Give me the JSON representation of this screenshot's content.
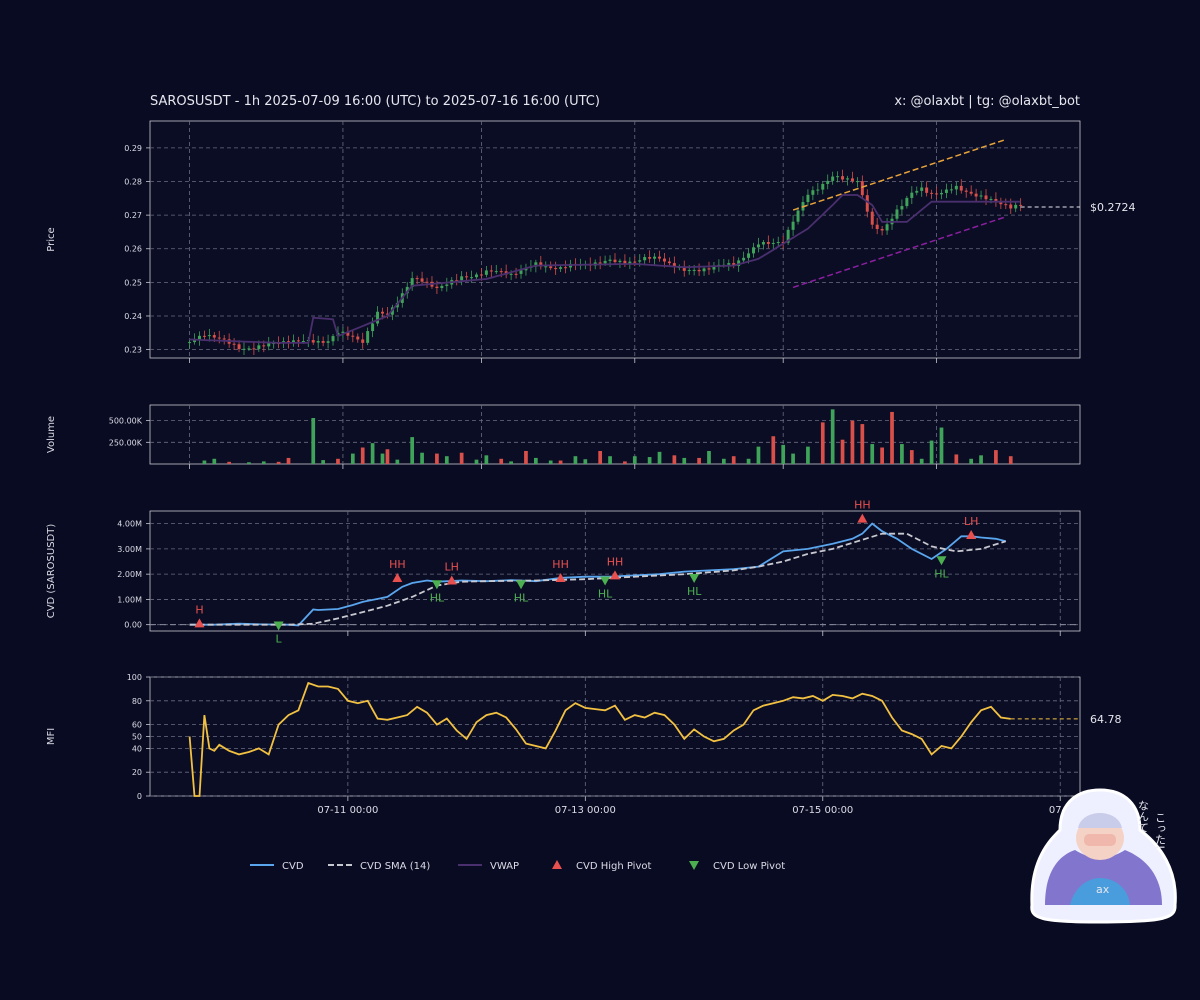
{
  "header": {
    "title": "SAROSUSDT - 1h 2025-07-09 16:00 (UTC) to 2025-07-16 16:00 (UTC)",
    "credit": "x: @olaxbt | tg: @olaxbt_bot"
  },
  "mascot": {
    "caption_line1": "こった!",
    "caption_line2": "なんて"
  },
  "chart_data": [
    {
      "id": "price",
      "type": "candlestick",
      "ylabel": "Price",
      "ylim": [
        0.2275,
        0.298
      ],
      "yticks": [
        "0.23",
        "0.24",
        "0.25",
        "0.26",
        "0.27",
        "0.28",
        "0.29"
      ],
      "ytick_values": [
        0.23,
        0.24,
        0.25,
        0.26,
        0.27,
        0.28,
        0.29
      ],
      "last_price_label": "$0.2724",
      "last_price": 0.2724,
      "colors": {
        "up": "#3fa45a",
        "down": "#d9504a",
        "vwap": "#4a2f6e",
        "resistance": "#e8a33a",
        "support": "#8b1fa0"
      },
      "resistance": {
        "x": [
          122,
          165
        ],
        "y": [
          0.2715,
          0.2925
        ]
      },
      "support": {
        "x": [
          122,
          165
        ],
        "y": [
          0.2485,
          0.2695
        ]
      },
      "candle_anchors": {
        "x": [
          0,
          3,
          6,
          10,
          15,
          20,
          25,
          28,
          30,
          35,
          38,
          40,
          45,
          50,
          55,
          60,
          65,
          70,
          75,
          80,
          85,
          90,
          95,
          100,
          105,
          110,
          115,
          120,
          125,
          130,
          135,
          138,
          140,
          143,
          146,
          148,
          150,
          152,
          155,
          158,
          160,
          163,
          166,
          168
        ],
        "close": [
          0.232,
          0.234,
          0.233,
          0.231,
          0.231,
          0.232,
          0.233,
          0.233,
          0.235,
          0.232,
          0.241,
          0.241,
          0.251,
          0.248,
          0.252,
          0.253,
          0.252,
          0.256,
          0.254,
          0.255,
          0.257,
          0.256,
          0.257,
          0.254,
          0.254,
          0.255,
          0.262,
          0.262,
          0.276,
          0.282,
          0.28,
          0.266,
          0.265,
          0.272,
          0.277,
          0.278,
          0.276,
          0.276,
          0.278,
          0.277,
          0.276,
          0.274,
          0.272,
          0.2724
        ]
      },
      "vwap_anchors": {
        "x": [
          0,
          18,
          20,
          24,
          25,
          29,
          30,
          40,
          45,
          60,
          70,
          90,
          100,
          110,
          115,
          125,
          130,
          132,
          135,
          138,
          140,
          145,
          150,
          168
        ],
        "y": [
          0.233,
          0.232,
          0.232,
          0.232,
          0.2395,
          0.239,
          0.234,
          0.24,
          0.249,
          0.251,
          0.255,
          0.2555,
          0.2545,
          0.255,
          0.257,
          0.266,
          0.273,
          0.276,
          0.276,
          0.273,
          0.268,
          0.268,
          0.274,
          0.274
        ]
      }
    },
    {
      "id": "volume",
      "type": "bar",
      "ylabel": "Volume",
      "ylim": [
        0,
        680000
      ],
      "yticks": [
        "250.00K",
        "500.00K"
      ],
      "ytick_values": [
        250000,
        500000
      ],
      "colors": {
        "up": "#3fa45a",
        "down": "#d9504a"
      },
      "bars": {
        "x": [
          3,
          5,
          8,
          12,
          15,
          18,
          20,
          25,
          27,
          30,
          33,
          35,
          37,
          39,
          40,
          42,
          45,
          47,
          50,
          52,
          55,
          58,
          60,
          63,
          65,
          68,
          70,
          73,
          75,
          78,
          80,
          83,
          85,
          88,
          90,
          93,
          95,
          98,
          100,
          103,
          105,
          108,
          110,
          113,
          115,
          118,
          120,
          122,
          125,
          128,
          130,
          132,
          134,
          136,
          138,
          140,
          142,
          144,
          146,
          148,
          150,
          152,
          155,
          158,
          160,
          163,
          166
        ],
        "v": [
          40000,
          60000,
          25000,
          20000,
          30000,
          25000,
          70000,
          530000,
          45000,
          60000,
          120000,
          190000,
          240000,
          120000,
          170000,
          50000,
          310000,
          130000,
          120000,
          90000,
          130000,
          50000,
          100000,
          60000,
          30000,
          150000,
          70000,
          40000,
          40000,
          90000,
          55000,
          150000,
          90000,
          30000,
          90000,
          80000,
          140000,
          100000,
          70000,
          70000,
          150000,
          60000,
          90000,
          60000,
          200000,
          320000,
          220000,
          120000,
          200000,
          480000,
          630000,
          280000,
          500000,
          460000,
          230000,
          190000,
          600000,
          230000,
          160000,
          60000,
          270000,
          420000,
          110000,
          60000,
          100000,
          160000,
          90000
        ],
        "up": [
          1,
          1,
          0,
          1,
          1,
          0,
          0,
          1,
          1,
          0,
          1,
          0,
          1,
          1,
          0,
          1,
          1,
          1,
          0,
          1,
          0,
          1,
          1,
          0,
          1,
          0,
          1,
          1,
          0,
          1,
          1,
          0,
          1,
          0,
          1,
          1,
          1,
          0,
          1,
          0,
          1,
          1,
          0,
          1,
          1,
          0,
          1,
          1,
          1,
          0,
          1,
          0,
          0,
          0,
          1,
          0,
          0,
          1,
          0,
          1,
          1,
          1,
          0,
          1,
          1,
          0,
          0
        ]
      }
    },
    {
      "id": "cvd",
      "type": "line",
      "ylabel": "CVD (SAROSUSDT)",
      "ylim": [
        -250000,
        4500000
      ],
      "yticks": [
        "0.00",
        "1.00M",
        "2.00M",
        "3.00M",
        "4.00M"
      ],
      "ytick_values": [
        0,
        1000000,
        2000000,
        3000000,
        4000000
      ],
      "series": [
        {
          "name": "CVD",
          "color": "#5aa6ee",
          "x": [
            0,
            5,
            10,
            15,
            20,
            22,
            25,
            26,
            30,
            33,
            35,
            40,
            43,
            45,
            48,
            50,
            55,
            60,
            65,
            70,
            75,
            80,
            85,
            90,
            95,
            100,
            105,
            110,
            115,
            120,
            125,
            130,
            134,
            136,
            138,
            140,
            143,
            146,
            148,
            150,
            153,
            156,
            158,
            160,
            163,
            165
          ],
          "y": [
            0,
            0,
            40000,
            10000,
            0,
            -30000,
            600000,
            580000,
            620000,
            780000,
            900000,
            1100000,
            1500000,
            1650000,
            1750000,
            1700000,
            1750000,
            1720000,
            1760000,
            1720000,
            1850000,
            1900000,
            1900000,
            1950000,
            2000000,
            2100000,
            2150000,
            2200000,
            2300000,
            2900000,
            3000000,
            3200000,
            3400000,
            3600000,
            4000000,
            3700000,
            3400000,
            3000000,
            2800000,
            2600000,
            3000000,
            3500000,
            3500000,
            3450000,
            3400000,
            3300000
          ]
        },
        {
          "name": "CVD SMA (14)",
          "color": "#c8c8d0",
          "x": [
            0,
            10,
            20,
            25,
            30,
            35,
            40,
            45,
            50,
            55,
            60,
            70,
            80,
            90,
            100,
            110,
            115,
            120,
            125,
            130,
            135,
            140,
            145,
            150,
            155,
            160,
            165
          ],
          "y": [
            0,
            0,
            0,
            40000,
            250000,
            500000,
            750000,
            1100000,
            1550000,
            1700000,
            1720000,
            1750000,
            1800000,
            1900000,
            2000000,
            2150000,
            2300000,
            2500000,
            2800000,
            3000000,
            3300000,
            3600000,
            3600000,
            3100000,
            2900000,
            3000000,
            3300000
          ]
        }
      ],
      "pivots": [
        {
          "type": "high",
          "label": "H",
          "x": 2,
          "y": 50000
        },
        {
          "type": "low",
          "label": "L",
          "x": 18,
          "y": -30000
        },
        {
          "type": "high",
          "label": "HH",
          "x": 42,
          "y": 1850000
        },
        {
          "type": "low",
          "label": "HL",
          "x": 50,
          "y": 1600000
        },
        {
          "type": "high",
          "label": "LH",
          "x": 53,
          "y": 1750000
        },
        {
          "type": "low",
          "label": "HL",
          "x": 67,
          "y": 1600000
        },
        {
          "type": "high",
          "label": "HH",
          "x": 75,
          "y": 1850000
        },
        {
          "type": "low",
          "label": "HL",
          "x": 84,
          "y": 1750000
        },
        {
          "type": "high",
          "label": "HH",
          "x": 86,
          "y": 1950000
        },
        {
          "type": "low",
          "label": "HL",
          "x": 102,
          "y": 1850000
        },
        {
          "type": "high",
          "label": "HH",
          "x": 136,
          "y": 4200000
        },
        {
          "type": "low",
          "label": "HL",
          "x": 152,
          "y": 2550000
        },
        {
          "type": "high",
          "label": "LH",
          "x": 158,
          "y": 3550000
        }
      ]
    },
    {
      "id": "mfi",
      "type": "line",
      "ylabel": "MFI",
      "ylim": [
        0,
        100
      ],
      "yticks": [
        "0",
        "20",
        "40",
        "50",
        "60",
        "80",
        "100"
      ],
      "ytick_values": [
        0,
        20,
        40,
        50,
        60,
        80,
        100
      ],
      "last_value_label": "64.78",
      "last_value": 64.78,
      "series": [
        {
          "name": "MFI",
          "color": "#f2c142",
          "x": [
            0,
            1,
            2,
            3,
            4,
            5,
            6,
            8,
            10,
            12,
            14,
            16,
            18,
            20,
            22,
            24,
            26,
            28,
            30,
            32,
            34,
            36,
            38,
            40,
            42,
            44,
            46,
            48,
            50,
            52,
            54,
            56,
            58,
            60,
            62,
            64,
            66,
            68,
            70,
            72,
            74,
            76,
            78,
            80,
            82,
            84,
            86,
            88,
            90,
            92,
            94,
            96,
            98,
            100,
            102,
            104,
            106,
            108,
            110,
            112,
            114,
            116,
            118,
            120,
            122,
            124,
            126,
            128,
            130,
            132,
            134,
            136,
            138,
            140,
            142,
            144,
            146,
            148,
            150,
            152,
            154,
            156,
            158,
            160,
            162,
            164,
            166
          ],
          "y": [
            50,
            0,
            0,
            68,
            40,
            38,
            43,
            38,
            35,
            37,
            40,
            35,
            60,
            68,
            72,
            95,
            92,
            92,
            90,
            80,
            78,
            80,
            65,
            64,
            66,
            68,
            75,
            70,
            60,
            65,
            55,
            48,
            62,
            68,
            70,
            66,
            56,
            44,
            42,
            40,
            55,
            72,
            78,
            74,
            73,
            72,
            76,
            64,
            68,
            66,
            70,
            68,
            60,
            48,
            56,
            50,
            46,
            48,
            55,
            60,
            72,
            76,
            78,
            80,
            83,
            82,
            84,
            80,
            85,
            84,
            82,
            86,
            84,
            80,
            66,
            55,
            52,
            48,
            35,
            42,
            40,
            50,
            62,
            72,
            75,
            66,
            64.78
          ]
        }
      ]
    }
  ],
  "xaxis": {
    "range": [
      -8,
      180
    ],
    "ticks": [
      "07-11 00:00",
      "07-13 00:00",
      "07-15 00:00",
      "07-1"
    ],
    "tick_positions": [
      32,
      80,
      128,
      176
    ],
    "price_grid_positions": [
      0,
      31,
      59,
      90,
      120,
      151
    ]
  },
  "legend": {
    "items": [
      {
        "label": "CVD",
        "kind": "line",
        "color": "#5aa6ee"
      },
      {
        "label": "CVD SMA (14)",
        "kind": "dash",
        "color": "#c8c8d0"
      },
      {
        "label": "VWAP",
        "kind": "line",
        "color": "#4a2f6e"
      },
      {
        "label": "CVD High Pivot",
        "kind": "tri-up",
        "color": "#e8504f"
      },
      {
        "label": "CVD Low Pivot",
        "kind": "tri-down",
        "color": "#4caf50"
      }
    ]
  }
}
